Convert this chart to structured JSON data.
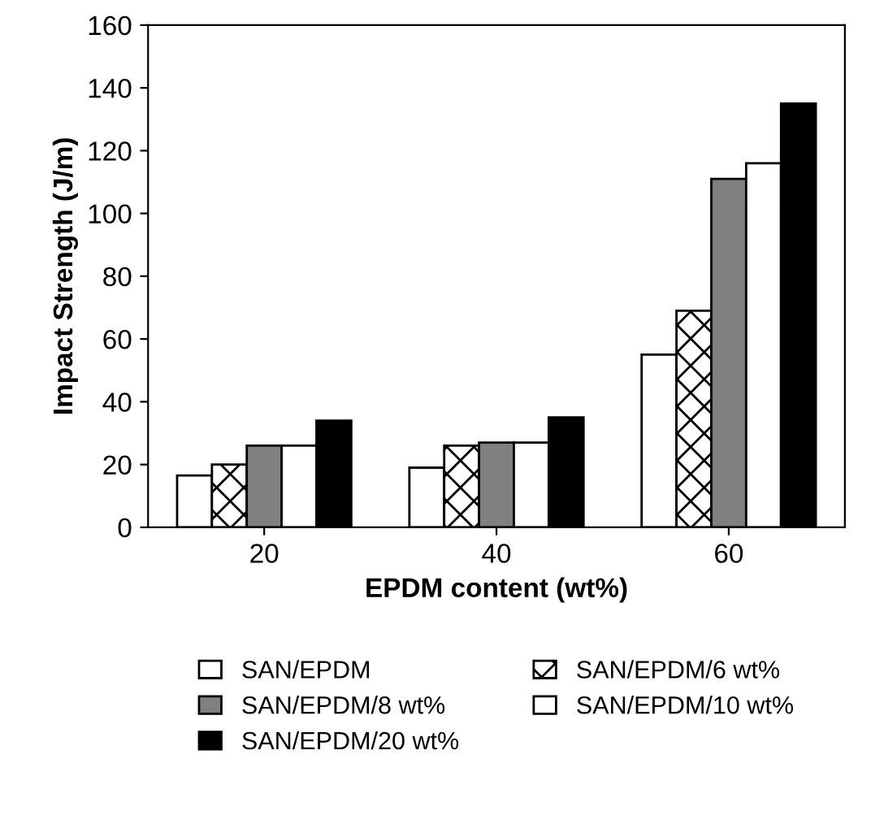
{
  "chart_data": {
    "type": "bar",
    "xlabel": "EPDM content (wt%)",
    "ylabel": "Impact Strength (J/m)",
    "categories": [
      "20",
      "40",
      "60"
    ],
    "series": [
      {
        "name": "SAN/EPDM",
        "color": "#ffffff",
        "values": [
          16.5,
          19,
          55
        ]
      },
      {
        "name": "SAN/EPDM/6 wt%",
        "color": "#000000",
        "values": [
          20,
          26,
          69
        ]
      },
      {
        "name": "SAN/EPDM/8 wt%",
        "color": "#808080",
        "values": [
          26,
          27,
          111
        ]
      },
      {
        "name": "SAN/EPDM/10 wt%",
        "color": "#ffffff",
        "values": [
          26,
          27,
          116
        ]
      },
      {
        "name": "SAN/EPDM/20 wt%",
        "color": "#000000",
        "values": [
          34,
          35,
          135
        ]
      }
    ],
    "ylim": [
      0,
      160
    ],
    "yticks": [
      0,
      20,
      40,
      60,
      80,
      100,
      120,
      140,
      160
    ],
    "grid": false,
    "legend": "bottom"
  }
}
